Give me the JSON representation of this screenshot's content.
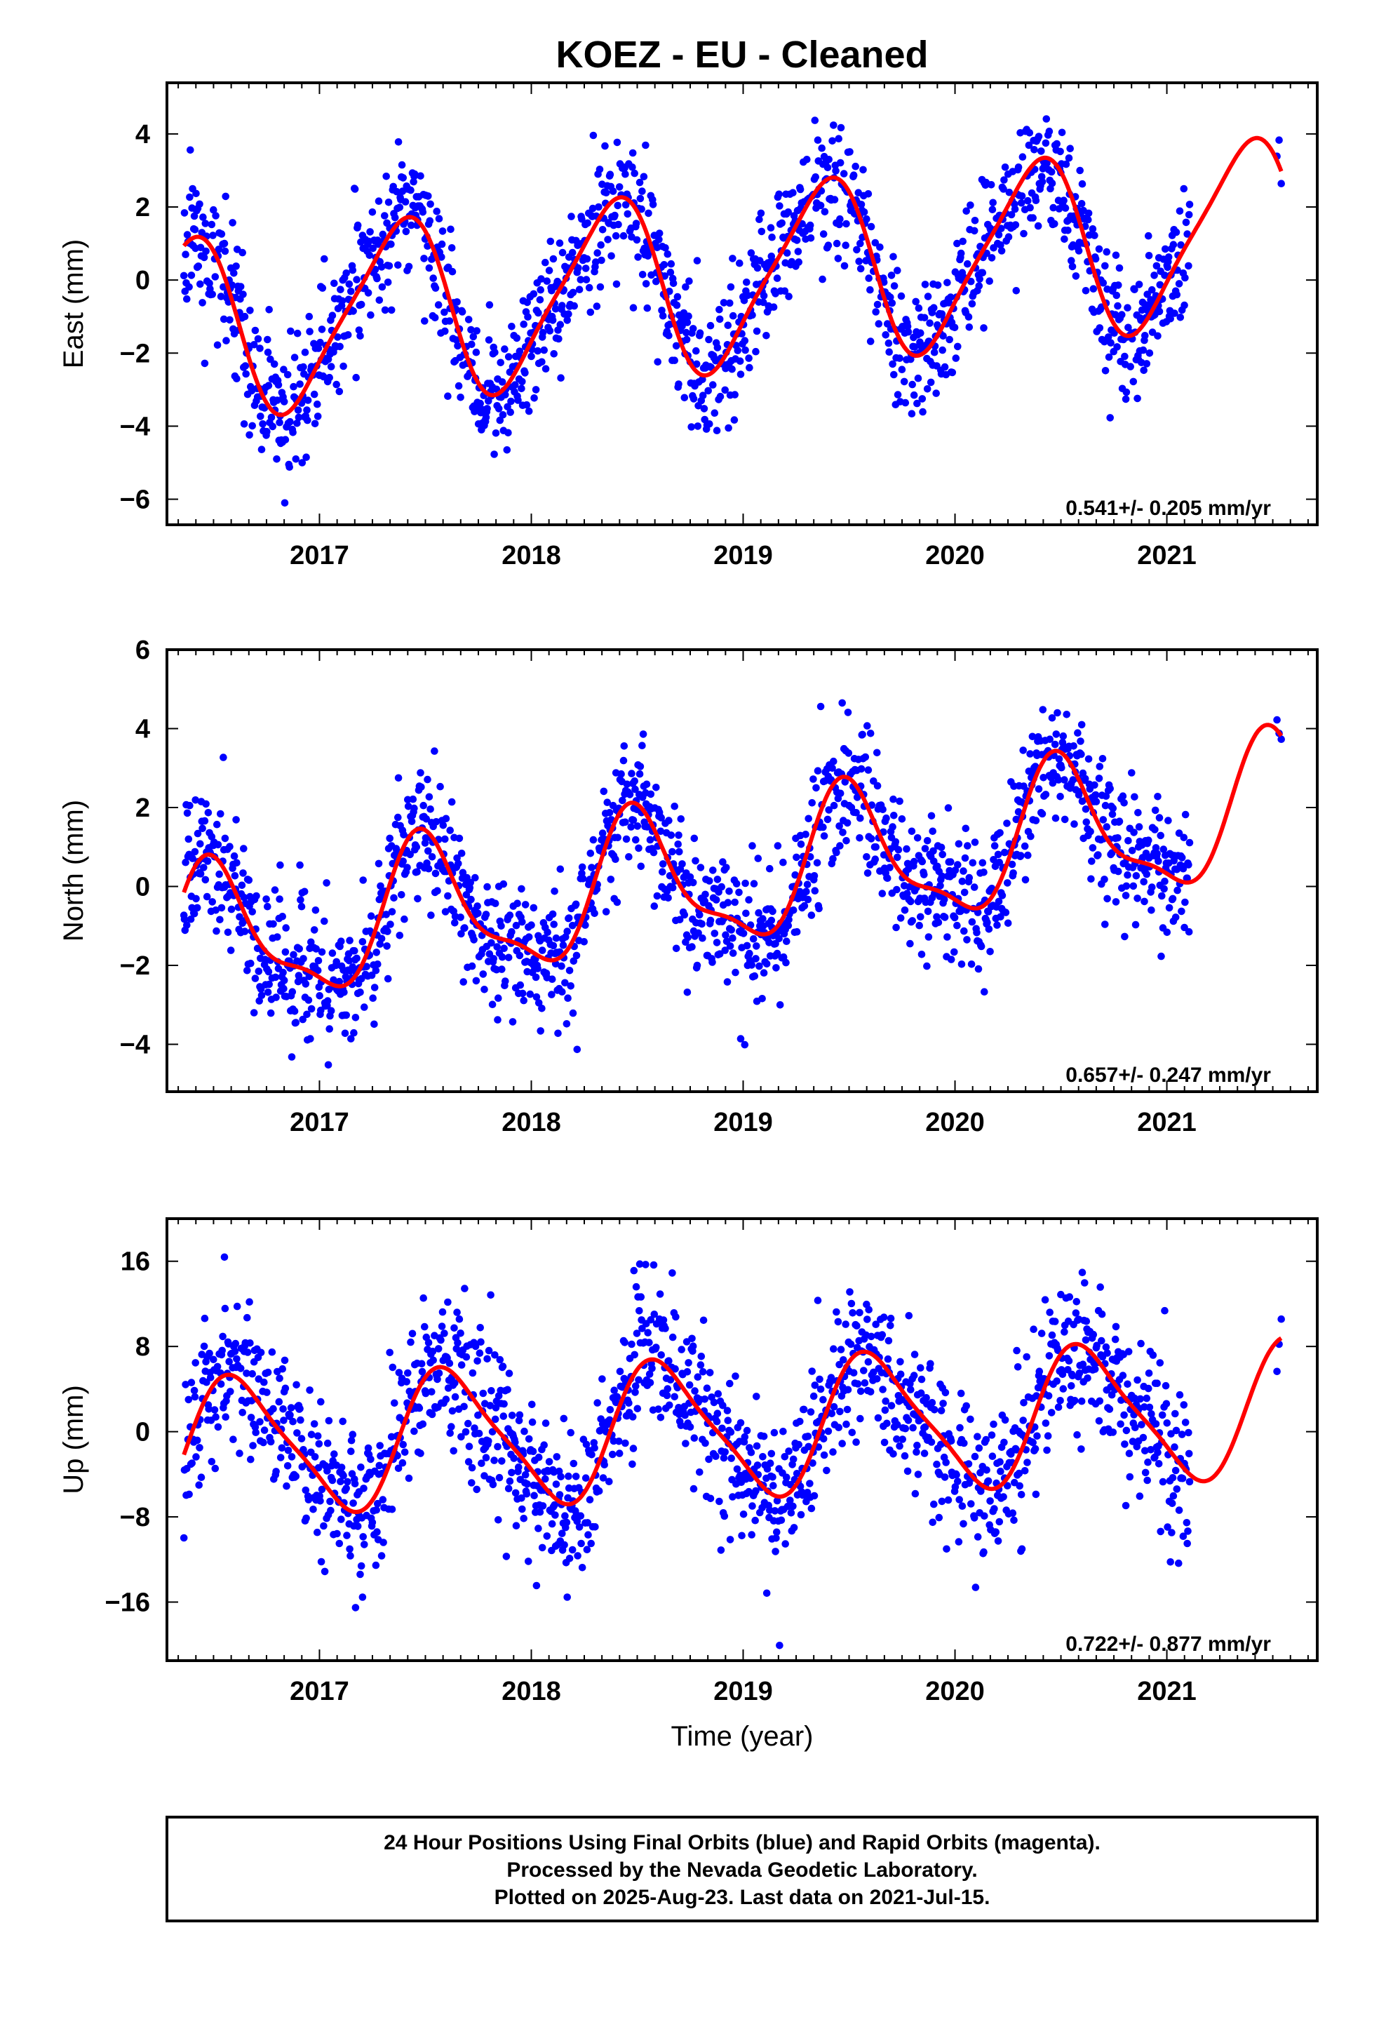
{
  "figure": {
    "title": "KOEZ  - EU - Cleaned",
    "xlabel": "Time (year)"
  },
  "colors": {
    "final_orbits": "#0000ff",
    "model_fit": "#ff0000",
    "frame": "#000000"
  },
  "footer": {
    "lines": [
      "24 Hour Positions Using Final Orbits (blue) and Rapid Orbits (magenta).",
      "Processed by the Nevada Geodetic Laboratory.",
      "Plotted on 2025-Aug-23. Last data on 2021-Jul-15."
    ]
  },
  "chart_data": [
    {
      "type": "scatter",
      "component": "east",
      "ylabel": "East (mm)",
      "rate_label": "0.541+/- 0.205 mm/yr",
      "xlim": [
        2016.28,
        2021.71
      ],
      "ylim": [
        -6.7,
        5.4
      ],
      "xticks": [
        2017,
        2018,
        2019,
        2020,
        2021
      ],
      "yticks": [
        -6,
        -4,
        -2,
        0,
        2,
        4
      ],
      "data_range": [
        2016.36,
        2021.54
      ],
      "model": {
        "offset": 0.0,
        "rate": 0.541,
        "ref_year": 2018.9,
        "annual_amp": 2.4,
        "annual_peak": 2016.37,
        "semiannual_amp": 0.45,
        "semiannual_peak": 2016.5
      },
      "scatter_sd": 0.9,
      "seed": 11,
      "series": [
        {
          "role": "observed",
          "values": []
        },
        {
          "role": "fit",
          "values": []
        }
      ]
    },
    {
      "type": "scatter",
      "component": "north",
      "ylabel": "North (mm)",
      "rate_label": "0.657+/- 0.247 mm/yr",
      "xlim": [
        2016.28,
        2021.71
      ],
      "ylim": [
        -5.2,
        6.0
      ],
      "xticks": [
        2017,
        2018,
        2019,
        2020,
        2021
      ],
      "yticks": [
        -4,
        -2,
        0,
        2,
        4,
        6
      ],
      "data_range": [
        2016.36,
        2021.54
      ],
      "model": {
        "offset": 0.2,
        "rate": 0.657,
        "ref_year": 2018.9,
        "annual_amp": 1.7,
        "annual_peak": 2016.5,
        "semiannual_amp": 0.55,
        "semiannual_peak": 2016.45
      },
      "scatter_sd": 0.85,
      "seed": 29,
      "series": [
        {
          "role": "observed",
          "values": []
        },
        {
          "role": "fit",
          "values": []
        }
      ]
    },
    {
      "type": "scatter",
      "component": "up",
      "ylabel": "Up (mm)",
      "rate_label": "0.722+/- 0.877 mm/yr",
      "xlim": [
        2016.28,
        2021.71
      ],
      "ylim": [
        -21.5,
        20.0
      ],
      "xticks": [
        2017,
        2018,
        2019,
        2020,
        2021
      ],
      "yticks": [
        -16,
        -8,
        0,
        8,
        16
      ],
      "data_range": [
        2016.36,
        2021.54
      ],
      "model": {
        "offset": 0.3,
        "rate": 0.722,
        "ref_year": 2018.9,
        "annual_amp": 6.2,
        "annual_peak": 2016.62,
        "semiannual_amp": 1.3,
        "semiannual_peak": 2016.5
      },
      "scatter_sd": 3.6,
      "seed": 47,
      "series": [
        {
          "role": "observed",
          "values": []
        },
        {
          "role": "fit",
          "values": []
        }
      ]
    }
  ]
}
